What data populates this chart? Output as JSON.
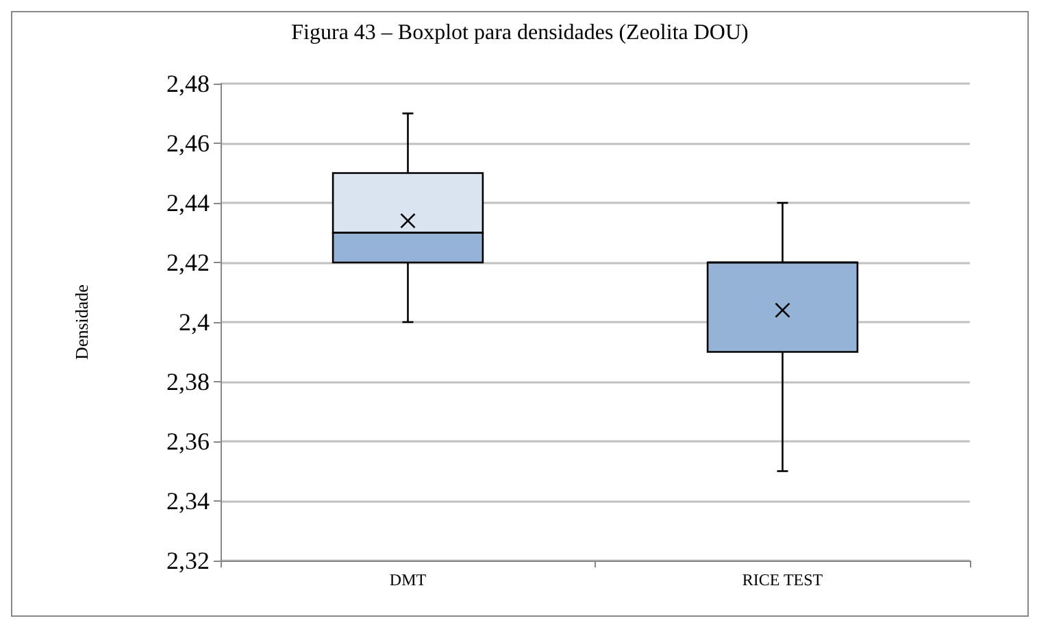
{
  "chart_data": {
    "type": "box",
    "title": "Figura 43 – Boxplot para densidades (Zeolita DOU)",
    "ylabel": "Densidade",
    "categories": [
      "DMT",
      "RICE TEST"
    ],
    "boxes": [
      {
        "low": 2.4,
        "q1": 2.42,
        "median": 2.43,
        "q3": 2.45,
        "high": 2.47,
        "mean": 2.434
      },
      {
        "low": 2.35,
        "q1": 2.39,
        "median": 2.42,
        "q3": 2.42,
        "high": 2.44,
        "mean": 2.404
      }
    ],
    "color": "#95b3d7",
    "ylim": [
      2.32,
      2.48
    ],
    "yticks": [
      {
        "value": 2.32,
        "label": "2,32"
      },
      {
        "value": 2.34,
        "label": "2,34"
      },
      {
        "value": 2.36,
        "label": "2,36"
      },
      {
        "value": 2.38,
        "label": "2,38"
      },
      {
        "value": 2.4,
        "label": "2,4"
      },
      {
        "value": 2.42,
        "label": "2,42"
      },
      {
        "value": 2.44,
        "label": "2,44"
      },
      {
        "value": 2.46,
        "label": "2,46"
      },
      {
        "value": 2.48,
        "label": "2,48"
      }
    ],
    "grid": "y"
  }
}
